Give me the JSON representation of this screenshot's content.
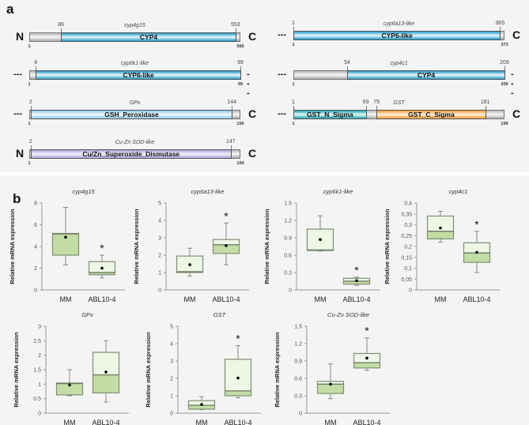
{
  "panel_a": {
    "label": "a",
    "proteins": [
      {
        "gene": "cyp4g15",
        "left": "N",
        "right": "C",
        "length": 566,
        "start_label": "1",
        "end_label": "566",
        "domains": [
          {
            "name": "CYP4",
            "start": 86,
            "end": 553,
            "color": "blue"
          }
        ]
      },
      {
        "gene": "cyp6k1-like",
        "left": "---",
        "right": "---",
        "length": 99,
        "start_label": "1",
        "end_label": "99",
        "domains": [
          {
            "name": "CYP6-like",
            "start": 4,
            "end": 99,
            "color": "blue"
          }
        ]
      },
      {
        "gene": "GPx",
        "left": "---",
        "right": "C",
        "length": 150,
        "start_label": "1",
        "end_label": "150",
        "domains": [
          {
            "name": "GSH_Peroxidase",
            "start": 2,
            "end": 144,
            "color": "light"
          }
        ]
      },
      {
        "gene": "Cu-Zn SOD-like",
        "left": "N",
        "right": "C",
        "length": 154,
        "start_label": "1",
        "end_label": "154",
        "domains": [
          {
            "name": "Cu/Zn_Superoxide_Dismutase",
            "start": 2,
            "end": 147,
            "color": "lav"
          }
        ]
      },
      {
        "gene": "cyp6a13-like",
        "left": "---",
        "right": "C",
        "length": 373,
        "start_label": "1",
        "end_label": "373",
        "domains": [
          {
            "name": "CYP6-like",
            "start": 1,
            "end": 365,
            "color": "blue"
          }
        ]
      },
      {
        "gene": "cyp4c1",
        "left": "---",
        "right": "---",
        "length": 209,
        "start_label": "1",
        "end_label": "209",
        "domains": [
          {
            "name": "CYP4",
            "start": 54,
            "end": 209,
            "color": "blue"
          }
        ]
      },
      {
        "gene": "GST",
        "left": "---",
        "right": "C",
        "length": 199,
        "start_label": "1",
        "end_label": "199",
        "domains": [
          {
            "name": "GST_N_Sigma",
            "start": 1,
            "end": 69,
            "color": "teal"
          },
          {
            "name": "GST_C_Sigma",
            "start": 79,
            "end": 181,
            "color": "orange"
          }
        ]
      }
    ]
  },
  "panel_b": {
    "label": "b"
  },
  "chart_data": [
    {
      "type": "box",
      "title": "cyp4g15",
      "ylabel": "Relative mRNA expression",
      "ylim": [
        0,
        8
      ],
      "yticks": [
        0,
        2,
        4,
        6,
        8
      ],
      "ytick_labels": [
        "0",
        "2",
        "4",
        "6",
        "8"
      ],
      "categories": [
        "MM",
        "ABL10-4"
      ],
      "boxes": [
        {
          "min": 2.3,
          "q1": 3.2,
          "median": 5.15,
          "q3": 5.2,
          "max": 7.6,
          "mean": 4.85,
          "significant": false
        },
        {
          "min": 1.1,
          "q1": 1.4,
          "median": 1.6,
          "q3": 2.6,
          "max": 3.2,
          "mean": 2.0,
          "significant": true
        }
      ],
      "sig_mark": "*"
    },
    {
      "type": "box",
      "title": "cyp6a13-like",
      "ylabel": "Relative mRNA expression",
      "ylim": [
        0,
        5
      ],
      "yticks": [
        0,
        1,
        2,
        3,
        4,
        5
      ],
      "ytick_labels": [
        "0",
        "1",
        "2",
        "3",
        "4",
        "5"
      ],
      "categories": [
        "MM",
        "ABL10-4"
      ],
      "boxes": [
        {
          "min": 0.8,
          "q1": 1.0,
          "median": 1.05,
          "q3": 1.95,
          "max": 2.4,
          "mean": 1.45,
          "significant": false
        },
        {
          "min": 1.45,
          "q1": 2.1,
          "median": 2.6,
          "q3": 2.9,
          "max": 3.85,
          "mean": 2.55,
          "significant": true
        }
      ],
      "sig_mark": "*"
    },
    {
      "type": "box",
      "title": "cyp6k1-like",
      "ylabel": "Relative mRNA expression",
      "ylim": [
        0,
        1.5
      ],
      "yticks": [
        0,
        0.3,
        0.6,
        0.9,
        1.2,
        1.5
      ],
      "ytick_labels": [
        "0",
        "0.3",
        "0.6",
        "0.9",
        "1.2",
        "1.5"
      ],
      "categories": [
        "MM",
        "ABL10-4"
      ],
      "boxes": [
        {
          "min": 0.67,
          "q1": 0.68,
          "median": 0.69,
          "q3": 1.05,
          "max": 1.28,
          "mean": 0.87,
          "significant": false
        },
        {
          "min": 0.08,
          "q1": 0.1,
          "median": 0.15,
          "q3": 0.2,
          "max": 0.22,
          "mean": 0.16,
          "significant": true
        }
      ],
      "sig_mark": "*"
    },
    {
      "type": "box",
      "title": "cyp4c1",
      "ylabel": "Relative mRNA expression",
      "ylim": [
        0,
        0.4
      ],
      "yticks": [
        0,
        0.05,
        0.1,
        0.15,
        0.2,
        0.25,
        0.3,
        0.35,
        0.4
      ],
      "ytick_labels": [
        "0",
        "0,05",
        "0,1",
        "0,15",
        "0,2",
        "0,25",
        "0,3",
        "0,35",
        "0,4"
      ],
      "categories": [
        "MM",
        "ABL10-4"
      ],
      "boxes": [
        {
          "min": 0.22,
          "q1": 0.235,
          "median": 0.27,
          "q3": 0.34,
          "max": 0.362,
          "mean": 0.285,
          "significant": false
        },
        {
          "min": 0.08,
          "q1": 0.127,
          "median": 0.17,
          "q3": 0.217,
          "max": 0.27,
          "mean": 0.173,
          "significant": true
        }
      ],
      "sig_mark": "*"
    },
    {
      "type": "box",
      "title": "GPx",
      "ylabel": "Relative mRNA expression",
      "ylim": [
        0,
        3
      ],
      "yticks": [
        0,
        0.5,
        1,
        1.5,
        2,
        2.5,
        3
      ],
      "ytick_labels": [
        "0",
        "0.5",
        "1",
        "1.5",
        "2",
        "2.5",
        "3"
      ],
      "categories": [
        "MM",
        "ABL10-4"
      ],
      "boxes": [
        {
          "min": 0.6,
          "q1": 0.63,
          "median": 1.02,
          "q3": 1.04,
          "max": 1.5,
          "mean": 0.97,
          "significant": false
        },
        {
          "min": 0.38,
          "q1": 0.7,
          "median": 1.32,
          "q3": 2.1,
          "max": 2.5,
          "mean": 1.42,
          "significant": false
        }
      ],
      "sig_mark": "*"
    },
    {
      "type": "box",
      "title": "GST",
      "ylabel": "Relative mRNA expression",
      "ylim": [
        0,
        5
      ],
      "yticks": [
        0,
        1,
        2,
        3,
        4,
        5
      ],
      "ytick_labels": [
        "0",
        "1",
        "2",
        "3",
        "4",
        "5"
      ],
      "categories": [
        "MM",
        "ABL10-4"
      ],
      "boxes": [
        {
          "min": 0.2,
          "q1": 0.23,
          "median": 0.45,
          "q3": 0.72,
          "max": 0.95,
          "mean": 0.5,
          "significant": false
        },
        {
          "min": 0.88,
          "q1": 1.0,
          "median": 1.28,
          "q3": 3.1,
          "max": 3.88,
          "mean": 2.02,
          "significant": true
        }
      ],
      "sig_mark": "*"
    },
    {
      "type": "box",
      "title": "Cu-Zn SOD-like",
      "ylabel": "Relative mRNA expression",
      "ylim": [
        0,
        1.5
      ],
      "yticks": [
        0,
        0.3,
        0.6,
        0.9,
        1.2,
        1.5
      ],
      "ytick_labels": [
        "0",
        "0.3",
        "0.6",
        "0.9",
        "1.2",
        "1.5"
      ],
      "categories": [
        "MM",
        "ABL10-4"
      ],
      "boxes": [
        {
          "min": 0.25,
          "q1": 0.34,
          "median": 0.5,
          "q3": 0.55,
          "max": 0.85,
          "mean": 0.5,
          "significant": false
        },
        {
          "min": 0.74,
          "q1": 0.78,
          "median": 0.87,
          "q3": 1.03,
          "max": 1.3,
          "mean": 0.95,
          "significant": true
        }
      ],
      "sig_mark": "*"
    }
  ]
}
